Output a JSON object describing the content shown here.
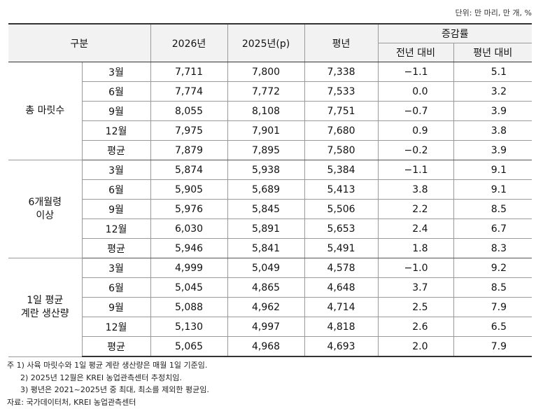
{
  "unit": "단위: 만 마리, 만 개, %",
  "header": {
    "category": "구분",
    "col_2026": "2026년",
    "col_2025": "2025년(p)",
    "normal": "평년",
    "change": "증감률",
    "yoy": "전년 대비",
    "vs_normal": "평년 대비"
  },
  "groups": [
    {
      "label": [
        "총 마릿수"
      ],
      "rows": [
        [
          "3월",
          "7,711",
          "7,800",
          "7,338",
          "−1.1",
          "5.1"
        ],
        [
          "6월",
          "7,774",
          "7,772",
          "7,533",
          "0.0",
          "3.2"
        ],
        [
          "9월",
          "8,055",
          "8,108",
          "7,751",
          "−0.7",
          "3.9"
        ],
        [
          "12월",
          "7,975",
          "7,901",
          "7,680",
          "0.9",
          "3.8"
        ],
        [
          "평균",
          "7,879",
          "7,895",
          "7,580",
          "−0.2",
          "3.9"
        ]
      ]
    },
    {
      "label": [
        "6개월령",
        "이상"
      ],
      "rows": [
        [
          "3월",
          "5,874",
          "5,938",
          "5,384",
          "−1.1",
          "9.1"
        ],
        [
          "6월",
          "5,905",
          "5,689",
          "5,413",
          "3.8",
          "9.1"
        ],
        [
          "9월",
          "5,976",
          "5,845",
          "5,506",
          "2.2",
          "8.5"
        ],
        [
          "12월",
          "6,030",
          "5,891",
          "5,653",
          "2.4",
          "6.7"
        ],
        [
          "평균",
          "5,946",
          "5,841",
          "5,491",
          "1.8",
          "8.3"
        ]
      ]
    },
    {
      "label": [
        "1일 평균",
        "계란 생산량"
      ],
      "rows": [
        [
          "3월",
          "4,999",
          "5,049",
          "4,578",
          "−1.0",
          "9.2"
        ],
        [
          "6월",
          "5,045",
          "4,865",
          "4,648",
          "3.7",
          "8.5"
        ],
        [
          "9월",
          "5,088",
          "4,962",
          "4,714",
          "2.5",
          "7.9"
        ],
        [
          "12월",
          "5,130",
          "4,997",
          "4,818",
          "2.6",
          "6.5"
        ],
        [
          "평균",
          "5,065",
          "4,968",
          "4,693",
          "2.0",
          "7.9"
        ]
      ]
    }
  ],
  "notes": [
    "주 1) 사육 마릿수와 1일 평균 계란 생산량은 매월 1일 기준임.",
    "2) 2025년 12월은 KREI 농업관측센터 추정치임.",
    "3) 평년은 2021~2025년 중 최대, 최소를 제외한 평균임.",
    "자료: 국가데이터처, KREI 농업관측센터"
  ]
}
